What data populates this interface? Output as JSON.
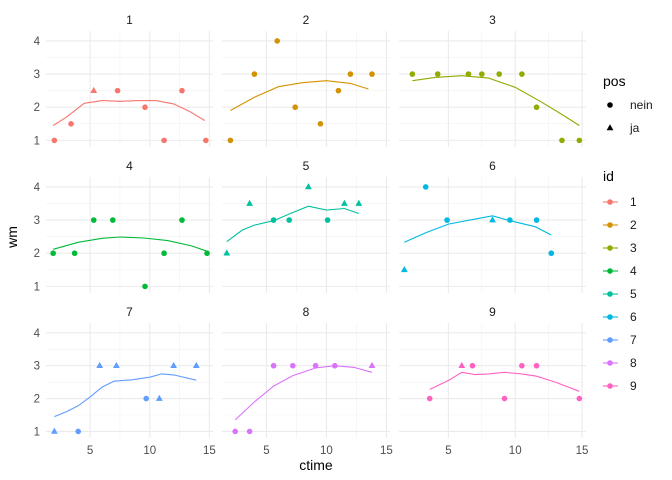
{
  "chart_data": {
    "type": "scatter",
    "xlabel": "ctime",
    "ylabel": "wm",
    "xlim": [
      1.3,
      15.3
    ],
    "ylim": [
      0.8,
      4.3
    ],
    "x_ticks": [
      5,
      10,
      15
    ],
    "y_ticks": [
      1,
      2,
      3,
      4
    ],
    "grid": true,
    "panels": [
      {
        "label": "1",
        "color": "#F8766D",
        "points": [
          {
            "x": 2.0,
            "y": 1,
            "pos": "nein"
          },
          {
            "x": 3.4,
            "y": 1.5,
            "pos": "nein"
          },
          {
            "x": 5.3,
            "y": 2.5,
            "pos": "ja"
          },
          {
            "x": 7.3,
            "y": 2.5,
            "pos": "nein"
          },
          {
            "x": 9.6,
            "y": 2,
            "pos": "nein"
          },
          {
            "x": 11.2,
            "y": 1,
            "pos": "nein"
          },
          {
            "x": 12.7,
            "y": 2.5,
            "pos": "nein"
          },
          {
            "x": 14.7,
            "y": 1,
            "pos": "nein"
          }
        ],
        "smooth": [
          [
            1.9,
            1.45
          ],
          [
            3,
            1.7
          ],
          [
            4.5,
            2.12
          ],
          [
            6,
            2.2
          ],
          [
            7.5,
            2.18
          ],
          [
            9,
            2.2
          ],
          [
            10.5,
            2.2
          ],
          [
            12,
            2.1
          ],
          [
            13.3,
            1.88
          ],
          [
            14.6,
            1.6
          ]
        ]
      },
      {
        "label": "2",
        "color": "#D39200",
        "points": [
          {
            "x": 2.0,
            "y": 1,
            "pos": "nein"
          },
          {
            "x": 4.0,
            "y": 3,
            "pos": "nein"
          },
          {
            "x": 5.9,
            "y": 4,
            "pos": "nein"
          },
          {
            "x": 7.4,
            "y": 2,
            "pos": "nein"
          },
          {
            "x": 9.5,
            "y": 1.5,
            "pos": "nein"
          },
          {
            "x": 11.0,
            "y": 2.5,
            "pos": "nein"
          },
          {
            "x": 12.0,
            "y": 3,
            "pos": "nein"
          },
          {
            "x": 13.8,
            "y": 3,
            "pos": "nein"
          }
        ],
        "smooth": [
          [
            2,
            1.9
          ],
          [
            4,
            2.3
          ],
          [
            6,
            2.62
          ],
          [
            8,
            2.74
          ],
          [
            10,
            2.8
          ],
          [
            12,
            2.72
          ],
          [
            13.5,
            2.55
          ]
        ]
      },
      {
        "label": "3",
        "color": "#93AA00",
        "points": [
          {
            "x": 2.3,
            "y": 3,
            "pos": "nein"
          },
          {
            "x": 4.2,
            "y": 3,
            "pos": "nein"
          },
          {
            "x": 6.5,
            "y": 3,
            "pos": "nein"
          },
          {
            "x": 7.5,
            "y": 3,
            "pos": "nein"
          },
          {
            "x": 8.8,
            "y": 3,
            "pos": "nein"
          },
          {
            "x": 10.5,
            "y": 3,
            "pos": "nein"
          },
          {
            "x": 11.6,
            "y": 2,
            "pos": "nein"
          },
          {
            "x": 13.5,
            "y": 1,
            "pos": "nein"
          },
          {
            "x": 14.8,
            "y": 1,
            "pos": "nein"
          }
        ],
        "smooth": [
          [
            2.3,
            2.8
          ],
          [
            4,
            2.9
          ],
          [
            6,
            2.95
          ],
          [
            8,
            2.88
          ],
          [
            10,
            2.6
          ],
          [
            12,
            2.15
          ],
          [
            13.5,
            1.78
          ],
          [
            14.8,
            1.45
          ]
        ]
      },
      {
        "label": "4",
        "color": "#00BA38",
        "points": [
          {
            "x": 1.9,
            "y": 2,
            "pos": "nein"
          },
          {
            "x": 3.7,
            "y": 2,
            "pos": "nein"
          },
          {
            "x": 5.3,
            "y": 3,
            "pos": "nein"
          },
          {
            "x": 6.9,
            "y": 3,
            "pos": "nein"
          },
          {
            "x": 9.6,
            "y": 1,
            "pos": "nein"
          },
          {
            "x": 11.2,
            "y": 2,
            "pos": "nein"
          },
          {
            "x": 12.7,
            "y": 3,
            "pos": "nein"
          },
          {
            "x": 14.8,
            "y": 2,
            "pos": "nein"
          }
        ],
        "smooth": [
          [
            1.9,
            2.12
          ],
          [
            4,
            2.33
          ],
          [
            6,
            2.45
          ],
          [
            7.5,
            2.49
          ],
          [
            9.5,
            2.46
          ],
          [
            11.5,
            2.38
          ],
          [
            13.5,
            2.22
          ],
          [
            14.8,
            2.06
          ]
        ]
      },
      {
        "label": "5",
        "color": "#00C19F",
        "points": [
          {
            "x": 1.7,
            "y": 2,
            "pos": "ja"
          },
          {
            "x": 3.6,
            "y": 3.5,
            "pos": "ja"
          },
          {
            "x": 5.6,
            "y": 3,
            "pos": "nein"
          },
          {
            "x": 6.9,
            "y": 3,
            "pos": "nein"
          },
          {
            "x": 8.5,
            "y": 4,
            "pos": "ja"
          },
          {
            "x": 10.1,
            "y": 3,
            "pos": "nein"
          },
          {
            "x": 11.5,
            "y": 3.5,
            "pos": "ja"
          },
          {
            "x": 12.7,
            "y": 3.5,
            "pos": "ja"
          }
        ],
        "smooth": [
          [
            1.7,
            2.35
          ],
          [
            3,
            2.7
          ],
          [
            4,
            2.85
          ],
          [
            5.6,
            2.98
          ],
          [
            7,
            3.2
          ],
          [
            8.5,
            3.42
          ],
          [
            10,
            3.3
          ],
          [
            11.5,
            3.35
          ],
          [
            12.7,
            3.2
          ]
        ]
      },
      {
        "label": "6",
        "color": "#00B9E3",
        "points": [
          {
            "x": 1.7,
            "y": 1.5,
            "pos": "ja"
          },
          {
            "x": 3.3,
            "y": 4,
            "pos": "nein"
          },
          {
            "x": 4.9,
            "y": 3,
            "pos": "nein"
          },
          {
            "x": 8.3,
            "y": 3,
            "pos": "ja"
          },
          {
            "x": 9.6,
            "y": 3,
            "pos": "nein"
          },
          {
            "x": 11.6,
            "y": 3,
            "pos": "nein"
          },
          {
            "x": 12.7,
            "y": 2,
            "pos": "nein"
          }
        ],
        "smooth": [
          [
            1.7,
            2.33
          ],
          [
            3.3,
            2.62
          ],
          [
            5,
            2.88
          ],
          [
            7,
            3.03
          ],
          [
            8.3,
            3.13
          ],
          [
            9.6,
            2.98
          ],
          [
            11.5,
            2.8
          ],
          [
            12.7,
            2.55
          ]
        ]
      },
      {
        "label": "7",
        "color": "#619CFF",
        "points": [
          {
            "x": 2.0,
            "y": 1,
            "pos": "ja"
          },
          {
            "x": 4.0,
            "y": 1,
            "pos": "nein"
          },
          {
            "x": 5.8,
            "y": 3,
            "pos": "ja"
          },
          {
            "x": 7.2,
            "y": 3,
            "pos": "ja"
          },
          {
            "x": 9.7,
            "y": 2,
            "pos": "nein"
          },
          {
            "x": 10.8,
            "y": 2,
            "pos": "ja"
          },
          {
            "x": 12.0,
            "y": 3,
            "pos": "ja"
          },
          {
            "x": 13.9,
            "y": 3,
            "pos": "ja"
          }
        ],
        "smooth": [
          [
            2,
            1.45
          ],
          [
            3,
            1.6
          ],
          [
            4,
            1.78
          ],
          [
            5,
            2.05
          ],
          [
            6,
            2.35
          ],
          [
            7,
            2.53
          ],
          [
            8.5,
            2.57
          ],
          [
            10,
            2.65
          ],
          [
            11,
            2.75
          ],
          [
            12,
            2.72
          ],
          [
            13.9,
            2.56
          ]
        ]
      },
      {
        "label": "8",
        "color": "#DB72FB",
        "points": [
          {
            "x": 2.4,
            "y": 1,
            "pos": "nein"
          },
          {
            "x": 3.6,
            "y": 1,
            "pos": "nein"
          },
          {
            "x": 5.6,
            "y": 3,
            "pos": "nein"
          },
          {
            "x": 7.2,
            "y": 3,
            "pos": "nein"
          },
          {
            "x": 9.1,
            "y": 3,
            "pos": "nein"
          },
          {
            "x": 10.7,
            "y": 3,
            "pos": "nein"
          },
          {
            "x": 13.8,
            "y": 3,
            "pos": "ja"
          }
        ],
        "smooth": [
          [
            2.4,
            1.35
          ],
          [
            4,
            1.9
          ],
          [
            5.6,
            2.38
          ],
          [
            7.2,
            2.7
          ],
          [
            9.1,
            2.93
          ],
          [
            10.7,
            3.0
          ],
          [
            12.3,
            2.95
          ],
          [
            13.8,
            2.8
          ]
        ]
      },
      {
        "label": "9",
        "color": "#FF61C3",
        "points": [
          {
            "x": 3.6,
            "y": 2,
            "pos": "nein"
          },
          {
            "x": 6.0,
            "y": 3,
            "pos": "ja"
          },
          {
            "x": 6.8,
            "y": 3,
            "pos": "nein"
          },
          {
            "x": 9.2,
            "y": 2,
            "pos": "nein"
          },
          {
            "x": 10.5,
            "y": 3,
            "pos": "nein"
          },
          {
            "x": 11.6,
            "y": 3,
            "pos": "nein"
          },
          {
            "x": 14.8,
            "y": 2,
            "pos": "nein"
          }
        ],
        "smooth": [
          [
            3.6,
            2.28
          ],
          [
            5,
            2.55
          ],
          [
            6,
            2.8
          ],
          [
            7,
            2.73
          ],
          [
            8,
            2.75
          ],
          [
            9.2,
            2.8
          ],
          [
            10.5,
            2.75
          ],
          [
            11.6,
            2.68
          ],
          [
            13,
            2.5
          ],
          [
            14.8,
            2.22
          ]
        ]
      }
    ],
    "legends": {
      "shape": {
        "title": "pos",
        "entries": [
          "nein",
          "ja"
        ]
      },
      "color": {
        "title": "id",
        "entries": [
          {
            "label": "1",
            "color": "#F8766D"
          },
          {
            "label": "2",
            "color": "#D39200"
          },
          {
            "label": "3",
            "color": "#93AA00"
          },
          {
            "label": "4",
            "color": "#00BA38"
          },
          {
            "label": "5",
            "color": "#00C19F"
          },
          {
            "label": "6",
            "color": "#00B9E3"
          },
          {
            "label": "7",
            "color": "#619CFF"
          },
          {
            "label": "8",
            "color": "#DB72FB"
          },
          {
            "label": "9",
            "color": "#FF61C3"
          }
        ]
      }
    },
    "legend_position": "right"
  }
}
